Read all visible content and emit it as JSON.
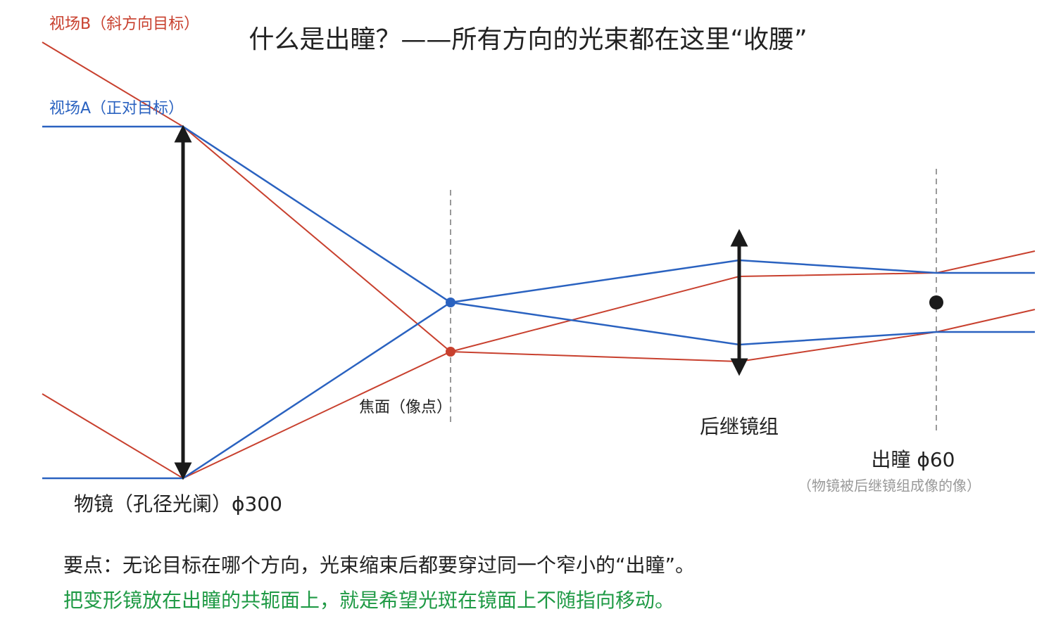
{
  "title": "什么是出瞳？——所有方向的光束都在这里“收腰”",
  "labels": {
    "field_b": "视场B（斜方向目标）",
    "field_a": "视场A（正对目标）",
    "focal_plane": "焦面（像点）",
    "relay_group": "后继镜组",
    "exit_pupil": "出瞳 ϕ60",
    "exit_pupil_note": "（物镜被后继镜组成像的像）",
    "objective": "物镜（孔径光阑）ϕ300"
  },
  "notes": [
    "要点：无论目标在哪个方向，光束缩束后都要穿过同一个窄小的“出瞳”。",
    "把变形镜放在出瞳的共轭面上，就是希望光斑在镜面上不随指向移动。"
  ]
}
